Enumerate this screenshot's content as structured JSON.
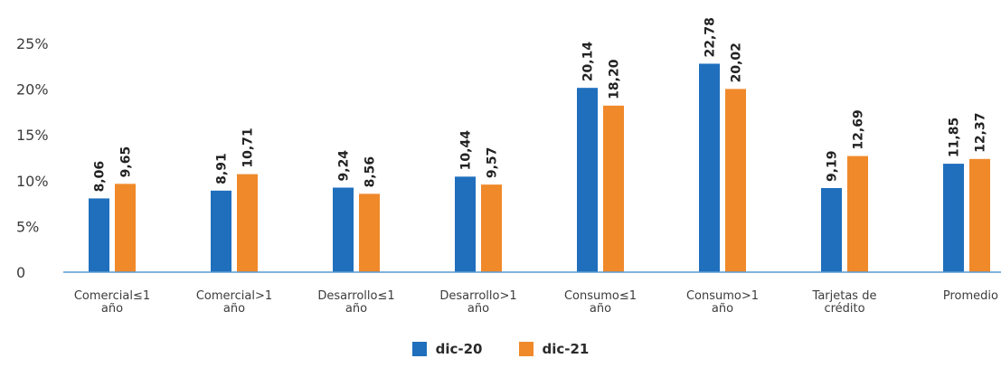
{
  "chart_data": {
    "type": "bar",
    "categories": [
      [
        "Comercial≤1",
        "año"
      ],
      [
        "Comercial>1",
        "año"
      ],
      [
        "Desarrollo≤1",
        "año"
      ],
      [
        "Desarrollo>1",
        "año"
      ],
      [
        "Consumo≤1",
        "año"
      ],
      [
        "Consumo>1",
        "año"
      ],
      [
        "Tarjetas de",
        "crédito"
      ],
      [
        "Promedio"
      ]
    ],
    "series": [
      {
        "name": "dic-20",
        "color": "#1f6fbd",
        "values": [
          8.06,
          8.91,
          9.24,
          10.44,
          20.14,
          22.78,
          9.19,
          11.85
        ],
        "labels": [
          "8,06",
          "8,91",
          "9,24",
          "10,44",
          "20,14",
          "22,78",
          "9,19",
          "11,85"
        ]
      },
      {
        "name": "dic-21",
        "color": "#f0892a",
        "values": [
          9.65,
          10.71,
          8.56,
          9.57,
          18.2,
          20.02,
          12.69,
          12.37
        ],
        "labels": [
          "9,65",
          "10,71",
          "8,56",
          "9,57",
          "18,20",
          "20,02",
          "12,69",
          "12,37"
        ]
      }
    ],
    "y_ticks": [
      "0",
      "5%",
      "10%",
      "15%",
      "20%",
      "25%"
    ],
    "ylim": [
      0,
      25
    ],
    "legend_position": "bottom"
  }
}
